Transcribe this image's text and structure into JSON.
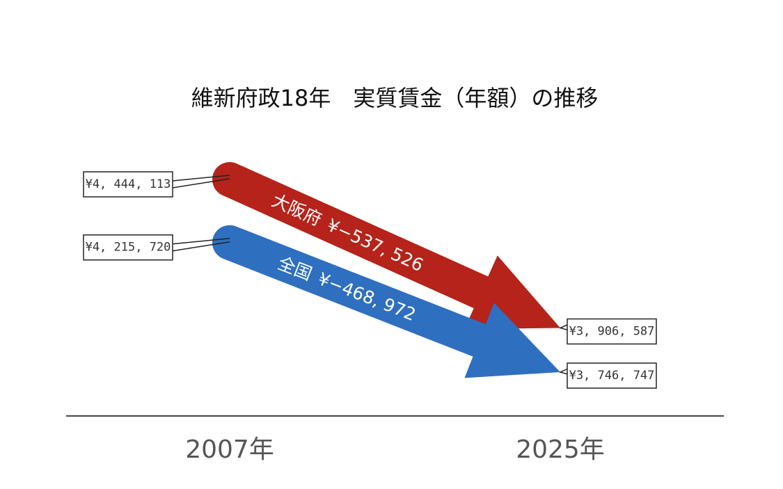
{
  "chart_data": {
    "type": "arrow",
    "title": "維新府政18年　実質賃金（年額）の推移",
    "categories": [
      "2007年",
      "2025年"
    ],
    "series": [
      {
        "name": "大阪府",
        "change_label": "¥−537, 526",
        "color": "#b5231a",
        "values": [
          4444113,
          3906587
        ],
        "value_labels": [
          "¥4, 444, 113",
          "¥3, 906, 587"
        ]
      },
      {
        "name": "全国",
        "change_label": "¥−468, 972",
        "color": "#2f6fbf",
        "values": [
          4215720,
          3746747
        ],
        "value_labels": [
          "¥4, 215, 720",
          "¥3, 746, 747"
        ]
      }
    ]
  }
}
